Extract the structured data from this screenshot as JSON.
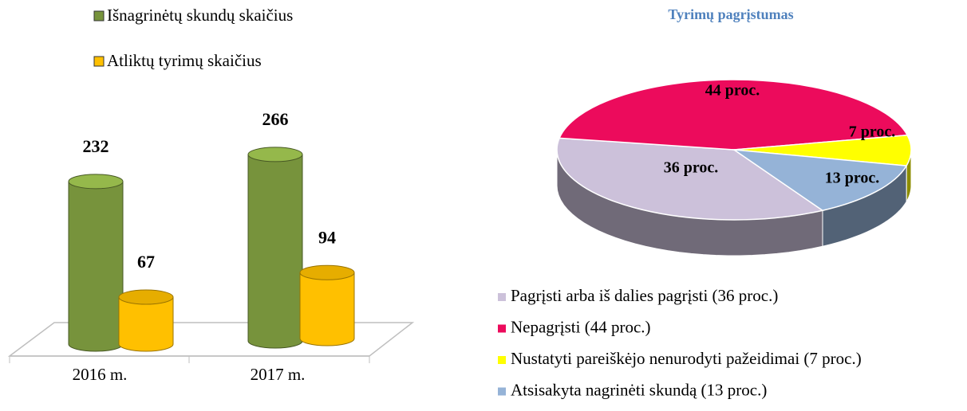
{
  "chart_data": [
    {
      "type": "bar",
      "categories": [
        "2016 m.",
        "2017 m."
      ],
      "series": [
        {
          "name": "Išnagrinėtų skundų skaičius",
          "color": "#77933c",
          "values": [
            232,
            266
          ]
        },
        {
          "name": "Atliktų tyrimų skaičius",
          "color": "#ffc000",
          "values": [
            67,
            94
          ]
        }
      ]
    },
    {
      "type": "pie",
      "title": "Tyrimų pagrįstumas",
      "categories": [
        "Pagrįsti arba iš dalies pagrįsti (36 proc.)",
        "Nepagrįsti (44 proc.)",
        "Nustatyti pareiškėjo nenurodyti pažeidimai (7 proc.)",
        "Atsisakyta nagrinėti skundą (13 proc.)"
      ],
      "values": [
        36,
        44,
        7,
        13
      ],
      "value_labels": [
        "36 proc.",
        "44 proc.",
        "7 proc.",
        "13 proc."
      ],
      "colors": [
        "#ccc1da",
        "#ec0b5c",
        "#ffff00",
        "#95b3d7"
      ]
    }
  ]
}
